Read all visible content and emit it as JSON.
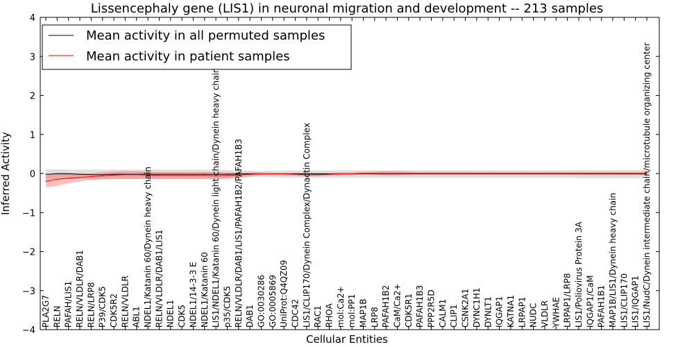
{
  "chart_data": {
    "type": "line",
    "title": "Lissencephaly gene (LIS1) in neuronal migration and development -- 213 samples",
    "xlabel": "Cellular Entities",
    "ylabel": "Inferred Activity",
    "ylim": [
      -4,
      4
    ],
    "yticks": [
      4,
      3,
      2,
      1,
      0,
      -1,
      -2,
      -3,
      -4
    ],
    "ytick_labels": [
      "4",
      "3",
      "2",
      "1",
      "0",
      "−1",
      "−2",
      "−3",
      "−4"
    ],
    "legend_position": "top-left",
    "categories": [
      "PLA2G7",
      "RELN",
      "PAFAH/LIS1",
      "RELN/VLDLR/DAB1",
      "RELN/LRP8",
      "P39/CDK5",
      "CDK5R2",
      "RELN/VLDLR",
      "ABL1",
      "NDEL1/Katanin 60/Dynein heavy chain",
      "RELN/VLDLR/DAB1/LIS1",
      "NDEL1",
      "CDK5",
      "NDEL1/14-3-3 E",
      "NDEL1/Katanin 60",
      "LIS1/NDEL1/Katanin 60/Dynein light chain/Dynein heavy chain",
      "p35/CDK5",
      "RELN/VLDLR/DAB1/LIS1/PAFAH1B2/PAFAH1B3",
      "DAB1",
      "GO:0030286",
      "GO:0005869",
      "UniProt:Q4QZ09",
      "CDC42",
      "LIS1/CLIP170/Dynein Complex/Dynactin Complex",
      "RAC1",
      "RHOA",
      "mol:Ca2+",
      "mol:PP1",
      "MAP1B",
      "LRP8",
      "PAFAH1B2",
      "CaM/Ca2+",
      "CDK5R1",
      "PAFAH1B3",
      "PPP2R5D",
      "CALM1",
      "CLIP1",
      "CSNK2A1",
      "DYNC1H1",
      "DYNLT1",
      "IQGAP1",
      "KATNA1",
      "LRPAP1",
      "NUDC",
      "VLDLR",
      "YWHAE",
      "LRPAP1/LRP8",
      "LIS1/Poliovirus Protein 3A",
      "IQGAP1/CaM",
      "PAFAH1B1",
      "MAP1B/LIS1/Dynein heavy chain",
      "LIS1/CLIP170",
      "LIS1/IQGAP1",
      "LIS1/NudC/Dynein intermediate chain/microtubule organizing center"
    ],
    "series": [
      {
        "name": "Mean activity in all permuted samples",
        "color": "#000000",
        "values": [
          -0.02,
          -0.01,
          -0.01,
          -0.02,
          -0.03,
          -0.03,
          -0.02,
          -0.02,
          -0.02,
          -0.02,
          -0.02,
          -0.02,
          -0.02,
          -0.02,
          -0.02,
          -0.02,
          -0.02,
          -0.01,
          -0.01,
          -0.01,
          -0.01,
          -0.01,
          -0.01,
          -0.01,
          -0.01,
          -0.01,
          -0.01,
          -0.01,
          -0.01,
          -0.01,
          -0.01,
          -0.01,
          -0.01,
          -0.01,
          -0.01,
          -0.01,
          -0.01,
          -0.01,
          -0.01,
          -0.01,
          -0.01,
          -0.01,
          -0.01,
          -0.01,
          -0.01,
          -0.01,
          -0.01,
          -0.01,
          -0.01,
          -0.01,
          -0.01,
          -0.01,
          -0.01,
          -0.01
        ],
        "band_lower": [
          -0.15,
          -0.15,
          -0.14,
          -0.14,
          -0.14,
          -0.14,
          -0.14,
          -0.14,
          -0.14,
          -0.14,
          -0.14,
          -0.14,
          -0.14,
          -0.14,
          -0.14,
          -0.14,
          -0.13,
          -0.12,
          -0.1,
          -0.09,
          -0.1,
          -0.11,
          -0.11,
          -0.11,
          -0.11,
          -0.11,
          -0.11,
          -0.11,
          -0.11,
          -0.11,
          -0.11,
          -0.11,
          -0.11,
          -0.11,
          -0.11,
          -0.11,
          -0.11,
          -0.11,
          -0.11,
          -0.11,
          -0.11,
          -0.11,
          -0.11,
          -0.11,
          -0.11,
          -0.11,
          -0.11,
          -0.12,
          -0.12,
          -0.12,
          -0.12,
          -0.12,
          -0.12,
          -0.12
        ],
        "band_upper": [
          0.11,
          0.11,
          0.1,
          0.1,
          0.1,
          0.1,
          0.1,
          0.1,
          0.1,
          0.1,
          0.1,
          0.1,
          0.1,
          0.1,
          0.1,
          0.1,
          0.09,
          0.08,
          0.07,
          0.06,
          0.07,
          0.08,
          0.08,
          0.08,
          0.08,
          0.08,
          0.08,
          0.08,
          0.08,
          0.08,
          0.08,
          0.08,
          0.08,
          0.08,
          0.08,
          0.08,
          0.08,
          0.08,
          0.08,
          0.08,
          0.08,
          0.08,
          0.08,
          0.08,
          0.08,
          0.08,
          0.08,
          0.09,
          0.09,
          0.09,
          0.09,
          0.09,
          0.09,
          0.09
        ]
      },
      {
        "name": "Mean activity in patient samples",
        "color": "#ff0000",
        "values": [
          -0.2,
          -0.15,
          -0.12,
          -0.1,
          -0.08,
          -0.06,
          -0.04,
          -0.03,
          -0.03,
          -0.04,
          -0.05,
          -0.05,
          -0.05,
          -0.05,
          -0.05,
          -0.06,
          -0.05,
          -0.04,
          -0.02,
          -0.01,
          -0.01,
          -0.01,
          -0.02,
          -0.03,
          -0.03,
          -0.02,
          -0.01,
          -0.01,
          0.0,
          0.0,
          0.0,
          0.0,
          0.0,
          0.0,
          0.0,
          0.0,
          0.0,
          0.0,
          0.0,
          0.0,
          0.0,
          0.0,
          0.0,
          0.0,
          0.0,
          0.0,
          0.0,
          0.0,
          0.0,
          0.0,
          0.0,
          0.0,
          0.0,
          0.0
        ],
        "band_lower": [
          -0.35,
          -0.32,
          -0.25,
          -0.2,
          -0.17,
          -0.15,
          -0.14,
          -0.14,
          -0.14,
          -0.14,
          -0.14,
          -0.14,
          -0.14,
          -0.14,
          -0.14,
          -0.14,
          -0.13,
          -0.1,
          -0.07,
          -0.05,
          -0.04,
          -0.05,
          -0.06,
          -0.07,
          -0.07,
          -0.06,
          -0.05,
          -0.04,
          -0.03,
          -0.04,
          -0.05,
          -0.05,
          -0.04,
          -0.03,
          -0.03,
          -0.03,
          -0.03,
          -0.03,
          -0.03,
          -0.03,
          -0.03,
          -0.03,
          -0.03,
          -0.03,
          -0.03,
          -0.03,
          -0.03,
          -0.04,
          -0.04,
          -0.04,
          -0.04,
          -0.04,
          -0.04,
          -0.04
        ],
        "band_upper": [
          -0.05,
          0.03,
          0.02,
          0.0,
          0.01,
          0.03,
          0.05,
          0.06,
          0.06,
          0.05,
          0.04,
          0.04,
          0.04,
          0.04,
          0.04,
          0.03,
          0.03,
          0.02,
          0.03,
          0.03,
          0.02,
          0.02,
          0.02,
          0.02,
          0.02,
          0.02,
          0.03,
          0.03,
          0.04,
          0.05,
          0.06,
          0.06,
          0.05,
          0.04,
          0.04,
          0.04,
          0.04,
          0.04,
          0.04,
          0.04,
          0.04,
          0.04,
          0.04,
          0.04,
          0.04,
          0.04,
          0.04,
          0.04,
          0.04,
          0.04,
          0.04,
          0.04,
          0.04,
          0.04
        ]
      }
    ]
  }
}
